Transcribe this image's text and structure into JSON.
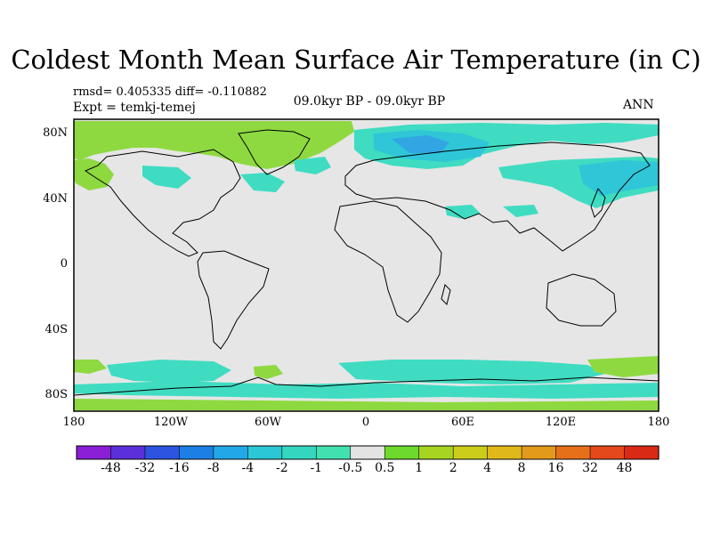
{
  "title": "Coldest Month Mean Surface Air Temperature (in C)",
  "stats": "rmsd= 0.405335 diff= -0.110882",
  "expt": "Expt = temkj-temej",
  "period": "09.0kyr BP - 09.0kyr BP",
  "season": "ANN",
  "lat_labels": [
    "80N",
    "40N",
    "0",
    "40S",
    "80S"
  ],
  "lon_labels": [
    "180",
    "120W",
    "60W",
    "0",
    "60E",
    "120E",
    "180"
  ],
  "colorbar": {
    "labels": [
      "-48",
      "-32",
      "-16",
      "-8",
      "-4",
      "-2",
      "-1",
      "-0.5",
      "0.5",
      "1",
      "2",
      "4",
      "8",
      "16",
      "32",
      "48"
    ],
    "colors": [
      "#8a1fd6",
      "#5b2fd9",
      "#2d54e0",
      "#1c7fe6",
      "#22a8e8",
      "#2cc7d6",
      "#34d6c0",
      "#42e0b0",
      "#e3e3e3",
      "#6cd92c",
      "#a6d420",
      "#cccc1a",
      "#e0b81a",
      "#e39a1a",
      "#e66f1a",
      "#e5481a",
      "#d92a14"
    ]
  },
  "colors": {
    "background": "#e6e6e6",
    "green": "#8ed940",
    "cyan": "#3fdcc2",
    "teal": "#2fc6d8",
    "blue": "#31a6e3"
  }
}
